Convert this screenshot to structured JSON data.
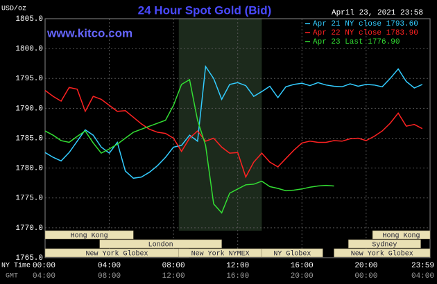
{
  "chart_data": {
    "type": "line",
    "title": "24 Hour Spot Gold (Bid)",
    "site": "www.kitco.com",
    "y_unit": "USD/oz",
    "timestamp": "April 23, 2021 23:58",
    "ny_time_label": "NY Time",
    "gmt_label": "GMT",
    "grid": true,
    "legend": "top-right",
    "xlim": [
      0,
      23.983
    ],
    "xticks": [
      {
        "value": 0,
        "label": "00:00"
      },
      {
        "value": 4,
        "label": "04:00"
      },
      {
        "value": 8,
        "label": "08:00"
      },
      {
        "value": 12,
        "label": "12:00"
      },
      {
        "value": 16,
        "label": "16:00"
      },
      {
        "value": 20,
        "label": "20:00"
      },
      {
        "value": 23.983,
        "label": "23:59"
      }
    ],
    "gmt_tick_labels": [
      "04:00",
      "08:00",
      "12:00",
      "16:00",
      "20:00",
      "00:00",
      "04:00"
    ],
    "ylim": [
      1765,
      1805
    ],
    "yticks": [
      {
        "value": 1765,
        "label": "1765.0"
      },
      {
        "value": 1770,
        "label": "1770.0"
      },
      {
        "value": 1775,
        "label": "1775.0"
      },
      {
        "value": 1780,
        "label": "1780.0"
      },
      {
        "value": 1785,
        "label": "1785.0"
      },
      {
        "value": 1790,
        "label": "1790.0"
      },
      {
        "value": 1795,
        "label": "1795.0"
      },
      {
        "value": 1800,
        "label": "1800.0"
      },
      {
        "value": 1805,
        "label": "1805.0"
      }
    ],
    "x": [
      0,
      0.5,
      1,
      1.5,
      2,
      2.5,
      3,
      3.5,
      4,
      4.5,
      5,
      5.5,
      6,
      6.5,
      7,
      7.5,
      8,
      8.5,
      9,
      9.5,
      10,
      10.5,
      11,
      11.5,
      12,
      12.5,
      13,
      13.5,
      14,
      14.5,
      15,
      15.5,
      16,
      16.5,
      17,
      17.5,
      18,
      18.5,
      19,
      19.5,
      20,
      20.5,
      21,
      21.5,
      22,
      22.5,
      23,
      23.5
    ],
    "series": [
      {
        "name": "Apr 21 NY close 1793.60",
        "color": "#33ccff",
        "values": [
          1782.6,
          1781.8,
          1781.2,
          1782.6,
          1784.5,
          1786.4,
          1785.5,
          1783.5,
          1782.5,
          1784.3,
          1779.5,
          1778.3,
          1778.5,
          1779.3,
          1780.4,
          1781.8,
          1783.5,
          1783.8,
          1785.5,
          1784.5,
          1797.0,
          1795.0,
          1791.5,
          1794.0,
          1794.3,
          1793.8,
          1792.0,
          1792.8,
          1793.7,
          1791.8,
          1793.6,
          1794.0,
          1794.2,
          1793.8,
          1794.3,
          1793.9,
          1793.7,
          1793.6,
          1794.1,
          1793.7,
          1794.0,
          1793.9,
          1793.6,
          1795.0,
          1796.6,
          1794.5,
          1793.4,
          1794.0
        ]
      },
      {
        "name": "Apr 22 NY close 1783.90",
        "color": "#ff2222",
        "values": [
          1793.0,
          1792.0,
          1791.2,
          1793.5,
          1793.2,
          1789.5,
          1792.0,
          1791.5,
          1790.5,
          1789.5,
          1789.6,
          1788.5,
          1787.4,
          1786.5,
          1786.0,
          1785.8,
          1785.0,
          1782.8,
          1785.0,
          1786.2,
          1784.5,
          1785.0,
          1783.5,
          1782.5,
          1782.6,
          1778.5,
          1781.0,
          1782.5,
          1781.0,
          1780.2,
          1781.6,
          1783.0,
          1784.2,
          1784.5,
          1784.3,
          1784.3,
          1784.6,
          1784.5,
          1784.9,
          1785.0,
          1784.6,
          1785.3,
          1786.2,
          1787.5,
          1789.2,
          1787.0,
          1787.3,
          1786.6
        ]
      },
      {
        "name": "Apr 23 Last 1776.90",
        "color": "#33dd33",
        "values": [
          1786.2,
          1785.5,
          1784.6,
          1784.3,
          1785.3,
          1786.2,
          1784.2,
          1782.5,
          1783.2,
          1784.0,
          1785.0,
          1786.0,
          1786.5,
          1787.0,
          1787.5,
          1788.0,
          1790.5,
          1794.0,
          1794.8,
          1788.0,
          1783.8,
          1774.0,
          1772.5,
          1775.8,
          1776.5,
          1777.2,
          1777.3,
          1777.8,
          1776.9,
          1776.6,
          1776.2,
          1776.3,
          1776.5,
          1776.8,
          1777.0,
          1777.1,
          1777.0,
          null,
          null,
          null,
          null,
          null,
          null,
          null,
          null,
          null,
          null,
          null
        ]
      }
    ],
    "session_rows": [
      [
        {
          "label": "Hong Kong",
          "start": 0,
          "end": 5.5
        },
        {
          "label": "Hong Kong",
          "start": 20.4,
          "end": 23.983
        }
      ],
      [
        {
          "label": "London",
          "start": 3.4,
          "end": 11.0
        },
        {
          "label": "Sydney",
          "start": 18.9,
          "end": 23.4
        }
      ],
      [
        {
          "label": "New York Globex",
          "start": 0,
          "end": 8.95
        },
        {
          "label": "New York NYMEX",
          "start": 8.33,
          "end": 13.5
        },
        {
          "label": "NY Globex",
          "start": 13.5,
          "end": 17.3
        },
        {
          "label": "New York Globex",
          "start": 18.0,
          "end": 23.983
        }
      ]
    ]
  }
}
